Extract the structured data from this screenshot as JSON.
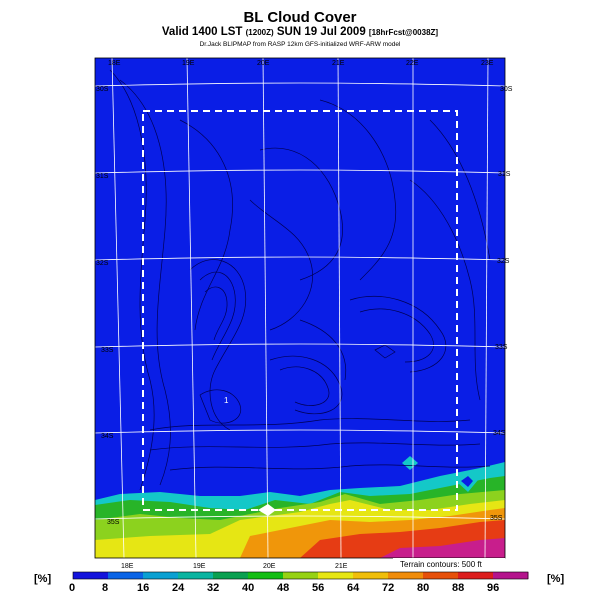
{
  "header": {
    "title": "BL Cloud Cover",
    "subtitle_main": "Valid 1400 LST",
    "subtitle_run": "(1200Z)",
    "subtitle_date": "SUN 19 Jul 2009",
    "subtitle_fcst": "[18hrFcst@0038Z]",
    "credit": "Dr.Jack BLIPMAP from RASP 12km GFS-initialized WRF-ARW model"
  },
  "map": {
    "lon_labels_top": [
      "18E",
      "19E",
      "20E",
      "21E",
      "22E",
      "23E"
    ],
    "lon_labels_bottom": [
      "18E",
      "19E",
      "20E",
      "21E"
    ],
    "lat_labels_left": [
      "30S",
      "31S",
      "32S",
      "33S",
      "34S",
      "35S"
    ],
    "lat_labels_right": [
      "30S",
      "31S",
      "32S",
      "33S",
      "34S",
      "35S"
    ],
    "point_label": "1",
    "terrain_note": "Terrain contours: 500 ft",
    "colors": {
      "background_field": "#0a1ee6",
      "frame": "#ffffff",
      "grid": "#ffffff",
      "contour": "#000055"
    }
  },
  "colorbar": {
    "unit_left": "[%]",
    "unit_right": "[%]",
    "labels": [
      "0",
      "8",
      "16",
      "24",
      "32",
      "40",
      "48",
      "56",
      "64",
      "72",
      "80",
      "88",
      "96"
    ],
    "colors": [
      "#1414dc",
      "#0a64e6",
      "#0aa0d2",
      "#0ab4a0",
      "#0aa050",
      "#14be14",
      "#96d214",
      "#e6e614",
      "#f0be0a",
      "#f08c0a",
      "#e6500a",
      "#dc1e1e",
      "#b4148c"
    ]
  }
}
